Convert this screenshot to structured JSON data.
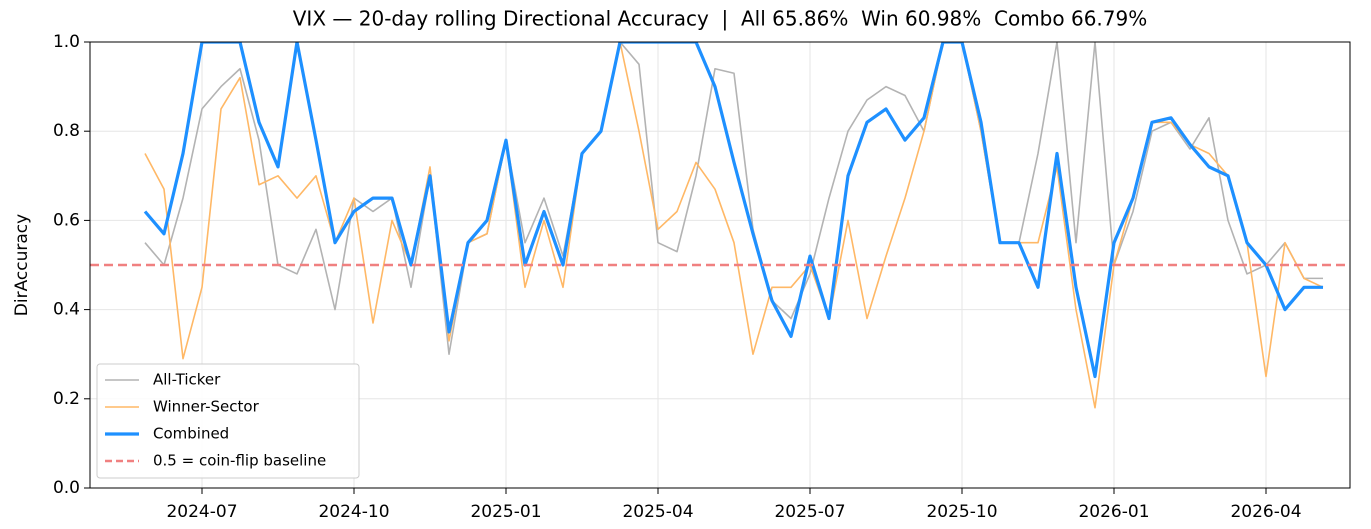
{
  "chart_data": {
    "type": "line",
    "title": "VIX — 20-day rolling Directional Accuracy  |  All 65.86%  Win 60.98%  Combo 66.79%",
    "ylabel": "DirAccuracy",
    "categories": [
      null,
      null,
      null,
      "2024-07",
      null,
      null,
      null,
      null,
      null,
      null,
      null,
      "2024-10",
      null,
      null,
      null,
      null,
      null,
      null,
      null,
      "2025-01",
      null,
      null,
      null,
      null,
      null,
      null,
      null,
      "2025-04",
      null,
      null,
      null,
      null,
      null,
      null,
      null,
      "2025-07",
      null,
      null,
      null,
      null,
      null,
      null,
      null,
      "2025-10",
      null,
      null,
      null,
      null,
      null,
      null,
      null,
      "2026-01",
      null,
      null,
      null,
      null,
      null,
      null,
      null,
      "2026-04",
      null,
      null,
      null
    ],
    "series": [
      {
        "name": "All-Ticker",
        "color": "#b3b3b3",
        "values": [
          0.55,
          0.5,
          0.65,
          0.85,
          0.9,
          0.94,
          0.78,
          0.5,
          0.48,
          0.58,
          0.4,
          0.65,
          0.62,
          0.65,
          0.45,
          0.7,
          0.3,
          0.55,
          0.57,
          0.78,
          0.55,
          0.65,
          0.52,
          0.75,
          0.8,
          1.0,
          0.95,
          0.55,
          0.53,
          0.7,
          0.94,
          0.93,
          0.58,
          0.42,
          0.38,
          0.48,
          0.65,
          0.8,
          0.87,
          0.9,
          0.88,
          0.8,
          1.0,
          1.0,
          0.8,
          0.55,
          0.55,
          0.75,
          1.0,
          0.55,
          1.0,
          0.5,
          0.62,
          0.8,
          0.82,
          0.76,
          0.83,
          0.6,
          0.48,
          0.5,
          0.55,
          0.47,
          0.47
        ]
      },
      {
        "name": "Winner-Sector",
        "color": "#ffb866",
        "values": [
          0.75,
          0.67,
          0.29,
          0.45,
          0.85,
          0.92,
          0.68,
          0.7,
          0.65,
          0.7,
          0.55,
          0.65,
          0.37,
          0.6,
          0.5,
          0.72,
          0.33,
          0.55,
          0.57,
          0.78,
          0.45,
          0.6,
          0.45,
          0.75,
          0.8,
          1.0,
          0.8,
          0.58,
          0.62,
          0.73,
          0.67,
          0.55,
          0.3,
          0.45,
          0.45,
          0.5,
          0.38,
          0.6,
          0.38,
          0.52,
          0.65,
          0.8,
          1.0,
          1.0,
          0.8,
          0.55,
          0.55,
          0.55,
          0.72,
          0.4,
          0.18,
          0.5,
          0.65,
          0.82,
          0.82,
          0.77,
          0.75,
          0.7,
          0.55,
          0.25,
          0.55,
          0.47,
          0.45
        ]
      },
      {
        "name": "Combined",
        "color": "#1e90ff",
        "values": [
          0.62,
          0.57,
          0.75,
          1.0,
          1.0,
          1.0,
          0.82,
          0.72,
          1.0,
          0.78,
          0.55,
          0.62,
          0.65,
          0.65,
          0.5,
          0.7,
          0.35,
          0.55,
          0.6,
          0.78,
          0.5,
          0.62,
          0.5,
          0.75,
          0.8,
          1.0,
          1.0,
          1.0,
          1.0,
          1.0,
          0.9,
          0.73,
          0.57,
          0.42,
          0.34,
          0.52,
          0.38,
          0.7,
          0.82,
          0.85,
          0.78,
          0.83,
          1.0,
          1.0,
          0.82,
          0.55,
          0.55,
          0.45,
          0.75,
          0.45,
          0.25,
          0.55,
          0.65,
          0.82,
          0.83,
          0.77,
          0.72,
          0.7,
          0.55,
          0.5,
          0.4,
          0.45,
          0.45
        ]
      }
    ],
    "baseline": {
      "value": 0.5,
      "label": "0.5 = coin-flip baseline",
      "color": "#f08080"
    },
    "ylim": [
      0,
      1
    ],
    "yticks": [
      {
        "value": 0,
        "label": "0.0"
      },
      0.2,
      0.4,
      0.6,
      0.8,
      {
        "value": 1,
        "label": "1.0"
      }
    ],
    "grid": true,
    "legend": "lower left"
  }
}
